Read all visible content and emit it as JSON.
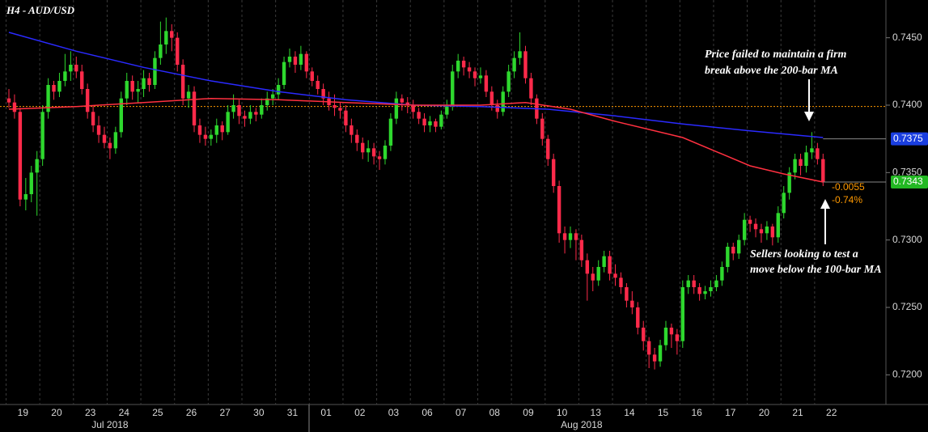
{
  "chart_data": {
    "type": "candlestick",
    "title": "H4 - AUD/USD",
    "up_color": "#2ed82e",
    "down_color": "#ff2a4a",
    "ylim": [
      0.7178,
      0.7478
    ],
    "yticks": [
      {
        "value": 0.72,
        "label": "0.7200"
      },
      {
        "value": 0.725,
        "label": "0.7250"
      },
      {
        "value": 0.73,
        "label": "0.7300"
      },
      {
        "value": 0.735,
        "label": "0.7350"
      },
      {
        "value": 0.74,
        "label": "0.7400"
      },
      {
        "value": 0.745,
        "label": "0.7450"
      }
    ],
    "categories": [
      "19",
      null,
      null,
      null,
      null,
      null,
      "20",
      null,
      null,
      null,
      null,
      null,
      "23",
      null,
      null,
      null,
      null,
      null,
      "24",
      null,
      null,
      null,
      null,
      null,
      "25",
      null,
      null,
      null,
      null,
      null,
      "26",
      null,
      null,
      null,
      null,
      null,
      "27",
      null,
      null,
      null,
      null,
      null,
      "30",
      null,
      null,
      null,
      null,
      null,
      "31",
      null,
      null,
      null,
      null,
      null,
      "01",
      null,
      null,
      null,
      null,
      null,
      "02",
      null,
      null,
      null,
      null,
      null,
      "03",
      null,
      null,
      null,
      null,
      null,
      "06",
      null,
      null,
      null,
      null,
      null,
      "07",
      null,
      null,
      null,
      null,
      null,
      "08",
      null,
      null,
      null,
      null,
      null,
      "09",
      null,
      null,
      null,
      null,
      null,
      "10",
      null,
      null,
      null,
      null,
      null,
      "13",
      null,
      null,
      null,
      null,
      null,
      "14",
      null,
      null,
      null,
      null,
      null,
      "15",
      null,
      null,
      null,
      null,
      null,
      "16",
      null,
      null,
      null,
      null,
      null,
      "17",
      null,
      null,
      null,
      null,
      null,
      "20",
      null,
      null,
      null,
      null,
      null,
      "21",
      null,
      null,
      null,
      null,
      null,
      "22",
      null
    ],
    "periods": [
      null,
      null,
      null,
      null,
      null,
      null,
      null,
      null,
      null,
      null,
      null,
      null,
      null,
      null,
      null,
      null,
      null,
      null,
      "Jul 2018",
      null,
      null,
      null,
      null,
      null,
      null,
      null,
      null,
      null,
      null,
      null,
      null,
      null,
      null,
      null,
      null,
      null,
      null,
      null,
      null,
      null,
      null,
      null,
      null,
      null,
      null,
      null,
      null,
      null,
      null,
      null,
      null,
      null,
      null,
      null,
      null,
      null,
      null,
      null,
      null,
      null,
      null,
      null,
      null,
      null,
      null,
      null,
      null,
      null,
      null,
      null,
      null,
      null,
      null,
      null,
      null,
      null,
      null,
      null,
      null,
      null,
      null,
      null,
      null,
      null,
      null,
      null,
      null,
      null,
      null,
      null,
      null,
      null,
      null,
      null,
      null,
      null,
      null,
      null,
      null,
      null,
      null,
      null,
      "Aug 2018",
      null,
      null,
      null,
      null,
      null,
      null,
      null,
      null,
      null,
      null,
      null,
      null,
      null,
      null,
      null,
      null,
      null,
      null,
      null,
      null,
      null,
      null,
      null,
      null,
      null,
      null,
      null,
      null,
      null,
      null,
      null,
      null,
      null,
      null,
      null,
      null,
      null,
      null,
      null,
      null,
      null,
      null,
      null
    ],
    "ohlc": [
      [
        0.7405,
        0.7412,
        0.7398,
        0.7402
      ],
      [
        0.7402,
        0.7408,
        0.739,
        0.7395
      ],
      [
        0.7395,
        0.7398,
        0.7325,
        0.733
      ],
      [
        0.733,
        0.7346,
        0.7322,
        0.7334
      ],
      [
        0.7334,
        0.7355,
        0.7328,
        0.735
      ],
      [
        0.735,
        0.7366,
        0.7318,
        0.736
      ],
      [
        0.736,
        0.74,
        0.7355,
        0.7395
      ],
      [
        0.7395,
        0.742,
        0.739,
        0.7415
      ],
      [
        0.7415,
        0.7418,
        0.7404,
        0.741
      ],
      [
        0.741,
        0.7424,
        0.7406,
        0.7418
      ],
      [
        0.7418,
        0.7438,
        0.7414,
        0.7425
      ],
      [
        0.7425,
        0.744,
        0.7418,
        0.743
      ],
      [
        0.743,
        0.7436,
        0.742,
        0.7425
      ],
      [
        0.7425,
        0.743,
        0.7408,
        0.7412
      ],
      [
        0.7412,
        0.7416,
        0.739,
        0.7395
      ],
      [
        0.7395,
        0.74,
        0.738,
        0.7385
      ],
      [
        0.7385,
        0.7392,
        0.7372,
        0.7378
      ],
      [
        0.7378,
        0.7384,
        0.7368,
        0.7372
      ],
      [
        0.7372,
        0.7376,
        0.736,
        0.7368
      ],
      [
        0.7368,
        0.7384,
        0.7364,
        0.738
      ],
      [
        0.738,
        0.741,
        0.7376,
        0.7405
      ],
      [
        0.7405,
        0.7424,
        0.74,
        0.7418
      ],
      [
        0.7418,
        0.7422,
        0.7404,
        0.741
      ],
      [
        0.741,
        0.7418,
        0.7402,
        0.7412
      ],
      [
        0.7412,
        0.7426,
        0.7406,
        0.742
      ],
      [
        0.742,
        0.7424,
        0.741,
        0.7415
      ],
      [
        0.7415,
        0.744,
        0.7412,
        0.7435
      ],
      [
        0.7435,
        0.7462,
        0.743,
        0.7445
      ],
      [
        0.7445,
        0.7465,
        0.7438,
        0.7455
      ],
      [
        0.7455,
        0.746,
        0.744,
        0.745
      ],
      [
        0.745,
        0.7454,
        0.7425,
        0.743
      ],
      [
        0.743,
        0.7434,
        0.74,
        0.7405
      ],
      [
        0.7405,
        0.7415,
        0.7398,
        0.741
      ],
      [
        0.741,
        0.7414,
        0.738,
        0.7385
      ],
      [
        0.7385,
        0.739,
        0.7372,
        0.7378
      ],
      [
        0.7378,
        0.7384,
        0.737,
        0.7375
      ],
      [
        0.7375,
        0.7382,
        0.737,
        0.7378
      ],
      [
        0.7378,
        0.739,
        0.7372,
        0.7385
      ],
      [
        0.7385,
        0.7388,
        0.7374,
        0.738
      ],
      [
        0.738,
        0.74,
        0.7378,
        0.7395
      ],
      [
        0.7395,
        0.7408,
        0.739,
        0.74
      ],
      [
        0.74,
        0.7404,
        0.7386,
        0.7392
      ],
      [
        0.7392,
        0.7396,
        0.7384,
        0.739
      ],
      [
        0.739,
        0.74,
        0.7386,
        0.7395
      ],
      [
        0.7395,
        0.7398,
        0.7388,
        0.7393
      ],
      [
        0.7393,
        0.7405,
        0.739,
        0.74
      ],
      [
        0.74,
        0.741,
        0.7396,
        0.7405
      ],
      [
        0.7405,
        0.7412,
        0.74,
        0.7408
      ],
      [
        0.7408,
        0.742,
        0.7404,
        0.7415
      ],
      [
        0.7415,
        0.7436,
        0.7412,
        0.7432
      ],
      [
        0.7432,
        0.7442,
        0.7428,
        0.7436
      ],
      [
        0.7436,
        0.744,
        0.7424,
        0.743
      ],
      [
        0.743,
        0.7444,
        0.7426,
        0.7438
      ],
      [
        0.7438,
        0.744,
        0.742,
        0.7425
      ],
      [
        0.7425,
        0.7428,
        0.7414,
        0.7418
      ],
      [
        0.7418,
        0.7422,
        0.7408,
        0.7412
      ],
      [
        0.7412,
        0.7416,
        0.74,
        0.7405
      ],
      [
        0.7405,
        0.741,
        0.7396,
        0.74
      ],
      [
        0.74,
        0.7408,
        0.7392,
        0.7398
      ],
      [
        0.7398,
        0.7402,
        0.739,
        0.7396
      ],
      [
        0.7396,
        0.74,
        0.738,
        0.7385
      ],
      [
        0.7385,
        0.739,
        0.7372,
        0.7378
      ],
      [
        0.7378,
        0.7382,
        0.7366,
        0.7372
      ],
      [
        0.7372,
        0.7376,
        0.736,
        0.7365
      ],
      [
        0.7365,
        0.7374,
        0.7358,
        0.7368
      ],
      [
        0.7368,
        0.7372,
        0.7356,
        0.7362
      ],
      [
        0.7362,
        0.7366,
        0.7352,
        0.736
      ],
      [
        0.736,
        0.7374,
        0.7356,
        0.737
      ],
      [
        0.737,
        0.7394,
        0.7366,
        0.739
      ],
      [
        0.739,
        0.741,
        0.7386,
        0.7405
      ],
      [
        0.7405,
        0.7408,
        0.7396,
        0.7402
      ],
      [
        0.7402,
        0.7406,
        0.7394,
        0.74
      ],
      [
        0.74,
        0.7404,
        0.739,
        0.7395
      ],
      [
        0.7395,
        0.7398,
        0.7386,
        0.739
      ],
      [
        0.739,
        0.7394,
        0.738,
        0.7385
      ],
      [
        0.7385,
        0.7392,
        0.738,
        0.7388
      ],
      [
        0.7388,
        0.739,
        0.738,
        0.7384
      ],
      [
        0.7384,
        0.7396,
        0.7382,
        0.7393
      ],
      [
        0.7393,
        0.7404,
        0.739,
        0.74
      ],
      [
        0.74,
        0.743,
        0.7396,
        0.7425
      ],
      [
        0.7425,
        0.7438,
        0.742,
        0.7433
      ],
      [
        0.7433,
        0.7436,
        0.7422,
        0.7428
      ],
      [
        0.7428,
        0.7432,
        0.742,
        0.7425
      ],
      [
        0.7425,
        0.7428,
        0.7414,
        0.742
      ],
      [
        0.742,
        0.7428,
        0.7416,
        0.7422
      ],
      [
        0.7422,
        0.7426,
        0.7406,
        0.741
      ],
      [
        0.741,
        0.7414,
        0.7396,
        0.74
      ],
      [
        0.74,
        0.7404,
        0.739,
        0.7395
      ],
      [
        0.7395,
        0.7414,
        0.7392,
        0.741
      ],
      [
        0.741,
        0.743,
        0.7406,
        0.7425
      ],
      [
        0.7425,
        0.744,
        0.742,
        0.7435
      ],
      [
        0.7435,
        0.7454,
        0.743,
        0.744
      ],
      [
        0.744,
        0.7444,
        0.7416,
        0.742
      ],
      [
        0.742,
        0.7424,
        0.74,
        0.7405
      ],
      [
        0.7405,
        0.7408,
        0.7386,
        0.739
      ],
      [
        0.739,
        0.7394,
        0.737,
        0.7375
      ],
      [
        0.7375,
        0.7378,
        0.7355,
        0.736
      ],
      [
        0.736,
        0.7364,
        0.7335,
        0.734
      ],
      [
        0.734,
        0.7344,
        0.7298,
        0.7305
      ],
      [
        0.7305,
        0.731,
        0.729,
        0.73
      ],
      [
        0.73,
        0.731,
        0.7294,
        0.7305
      ],
      [
        0.7305,
        0.7308,
        0.7285,
        0.73
      ],
      [
        0.73,
        0.7304,
        0.728,
        0.7285
      ],
      [
        0.7285,
        0.729,
        0.7255,
        0.7275
      ],
      [
        0.7275,
        0.728,
        0.7262,
        0.727
      ],
      [
        0.727,
        0.7285,
        0.7266,
        0.728
      ],
      [
        0.728,
        0.7292,
        0.7276,
        0.7288
      ],
      [
        0.7288,
        0.7292,
        0.727,
        0.7275
      ],
      [
        0.7275,
        0.7282,
        0.7266,
        0.7272
      ],
      [
        0.7272,
        0.7276,
        0.726,
        0.7265
      ],
      [
        0.7265,
        0.7268,
        0.725,
        0.7255
      ],
      [
        0.7255,
        0.7262,
        0.7245,
        0.725
      ],
      [
        0.725,
        0.7254,
        0.723,
        0.7235
      ],
      [
        0.7235,
        0.724,
        0.7218,
        0.7225
      ],
      [
        0.7225,
        0.7228,
        0.7205,
        0.7215
      ],
      [
        0.7215,
        0.722,
        0.7204,
        0.721
      ],
      [
        0.721,
        0.7226,
        0.7206,
        0.7222
      ],
      [
        0.7222,
        0.724,
        0.7218,
        0.7235
      ],
      [
        0.7235,
        0.7238,
        0.722,
        0.723
      ],
      [
        0.723,
        0.7234,
        0.7215,
        0.7225
      ],
      [
        0.7225,
        0.727,
        0.722,
        0.7265
      ],
      [
        0.7265,
        0.7274,
        0.726,
        0.727
      ],
      [
        0.727,
        0.7274,
        0.726,
        0.7265
      ],
      [
        0.7265,
        0.7268,
        0.7255,
        0.726
      ],
      [
        0.726,
        0.7266,
        0.7256,
        0.7262
      ],
      [
        0.7262,
        0.727,
        0.7258,
        0.7265
      ],
      [
        0.7265,
        0.7274,
        0.7262,
        0.727
      ],
      [
        0.727,
        0.7284,
        0.7266,
        0.728
      ],
      [
        0.728,
        0.7298,
        0.7276,
        0.7295
      ],
      [
        0.7295,
        0.7298,
        0.7285,
        0.729
      ],
      [
        0.729,
        0.7304,
        0.7286,
        0.73
      ],
      [
        0.73,
        0.732,
        0.7296,
        0.7315
      ],
      [
        0.7315,
        0.7318,
        0.7306,
        0.7312
      ],
      [
        0.7312,
        0.7316,
        0.7302,
        0.7308
      ],
      [
        0.7308,
        0.7312,
        0.7298,
        0.7305
      ],
      [
        0.7305,
        0.7314,
        0.73,
        0.731
      ],
      [
        0.731,
        0.7312,
        0.7296,
        0.7302
      ],
      [
        0.7302,
        0.7325,
        0.7298,
        0.732
      ],
      [
        0.732,
        0.734,
        0.7316,
        0.7335
      ],
      [
        0.7335,
        0.7354,
        0.733,
        0.735
      ],
      [
        0.735,
        0.7364,
        0.7345,
        0.736
      ],
      [
        0.736,
        0.7364,
        0.7348,
        0.7355
      ],
      [
        0.7355,
        0.737,
        0.735,
        0.7365
      ],
      [
        0.7365,
        0.738,
        0.736,
        0.7368
      ],
      [
        0.7368,
        0.7372,
        0.7356,
        0.736
      ],
      [
        0.736,
        0.7364,
        0.734,
        0.7343
      ]
    ],
    "moving_averages": [
      {
        "color": "#2a2aff",
        "x": [
          0,
          12,
          24,
          36,
          48,
          60,
          72,
          84,
          96,
          108,
          120,
          132,
          145
        ],
        "values": [
          0.7454,
          0.744,
          0.7428,
          0.7418,
          0.741,
          0.7404,
          0.74,
          0.7399,
          0.7397,
          0.7392,
          0.7386,
          0.7381,
          0.7376
        ]
      },
      {
        "color": "#ff3040",
        "x": [
          0,
          12,
          24,
          36,
          48,
          60,
          72,
          84,
          92,
          100,
          108,
          120,
          132,
          138,
          145
        ],
        "values": [
          0.7397,
          0.7399,
          0.7402,
          0.7405,
          0.7404,
          0.7402,
          0.74,
          0.74,
          0.7402,
          0.7397,
          0.7388,
          0.7376,
          0.7355,
          0.7349,
          0.7343
        ]
      }
    ],
    "reference_line": {
      "value": 0.7399,
      "color": "#ff9900"
    },
    "price_tags": [
      {
        "value": 0.7375,
        "color": "#1a3ee0"
      },
      {
        "value": 0.7343,
        "color": "#22b822"
      }
    ],
    "change": -0.0055,
    "change_pct": {
      "value": -0.74,
      "label": "-0.74%"
    },
    "change_color": "#ff9900",
    "annotations": [
      {
        "lines": [
          "Price failed to maintain a firm",
          "break above the 200-bar MA"
        ]
      },
      {
        "lines": [
          "Sellers looking to test a",
          "move below the 100-bar MA"
        ]
      }
    ]
  }
}
